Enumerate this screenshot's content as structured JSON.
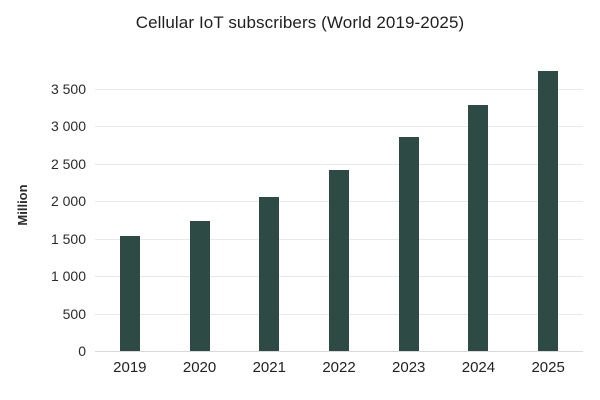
{
  "title": "Cellular IoT subscribers (World 2019-2025)",
  "colors": {
    "bar": "#2e4a44",
    "gridline": "#e9e9e9",
    "axis_baseline": "#d9d9d9",
    "title_text": "#1f1f1f",
    "tick_text": "#2b2b2b",
    "background": "#ffffff"
  },
  "chart_data": {
    "type": "bar",
    "title": "Cellular IoT subscribers (World 2019-2025)",
    "categories": [
      "2019",
      "2020",
      "2021",
      "2022",
      "2023",
      "2024",
      "2025"
    ],
    "values": [
      1530,
      1740,
      2060,
      2420,
      2860,
      3280,
      3740
    ],
    "xlabel": "",
    "ylabel": "Million",
    "ylim": [
      0,
      3800
    ],
    "yticks": [
      0,
      500,
      1000,
      1500,
      2000,
      2500,
      3000,
      3500
    ],
    "ytick_labels": [
      "0",
      "500",
      "1 000",
      "1 500",
      "2 000",
      "2 500",
      "3 000",
      "3 500"
    ],
    "grid": true,
    "legend": "none",
    "bar_color": "#2e4a44"
  }
}
